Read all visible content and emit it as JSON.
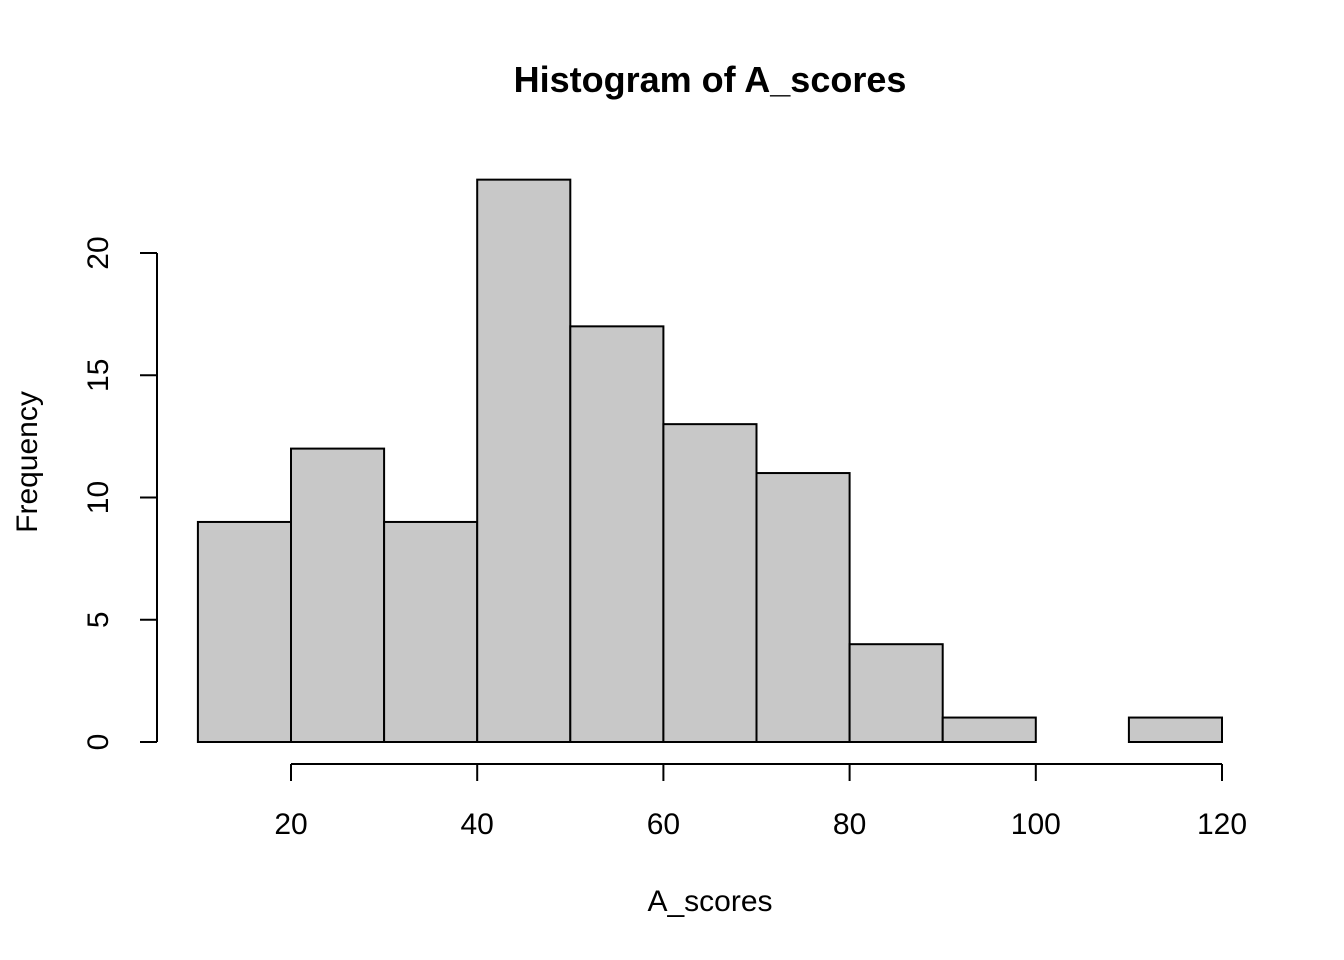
{
  "chart_data": {
    "type": "bar",
    "title": "Histogram of A_scores",
    "xlabel": "A_scores",
    "ylabel": "Frequency",
    "bins": [
      {
        "start": 10,
        "end": 20,
        "count": 9
      },
      {
        "start": 20,
        "end": 30,
        "count": 12
      },
      {
        "start": 30,
        "end": 40,
        "count": 9
      },
      {
        "start": 40,
        "end": 50,
        "count": 23
      },
      {
        "start": 50,
        "end": 60,
        "count": 17
      },
      {
        "start": 60,
        "end": 70,
        "count": 13
      },
      {
        "start": 70,
        "end": 80,
        "count": 11
      },
      {
        "start": 80,
        "end": 90,
        "count": 4
      },
      {
        "start": 90,
        "end": 100,
        "count": 1
      },
      {
        "start": 100,
        "end": 110,
        "count": 0
      },
      {
        "start": 110,
        "end": 120,
        "count": 1
      }
    ],
    "x_ticks": [
      20,
      40,
      60,
      80,
      100,
      120
    ],
    "y_ticks": [
      0,
      5,
      10,
      15,
      20
    ],
    "xlim": [
      10,
      120
    ],
    "ylim": [
      0,
      23
    ],
    "grid": false,
    "bar_color": "#c8c8c8",
    "edge_color": "#000000"
  }
}
